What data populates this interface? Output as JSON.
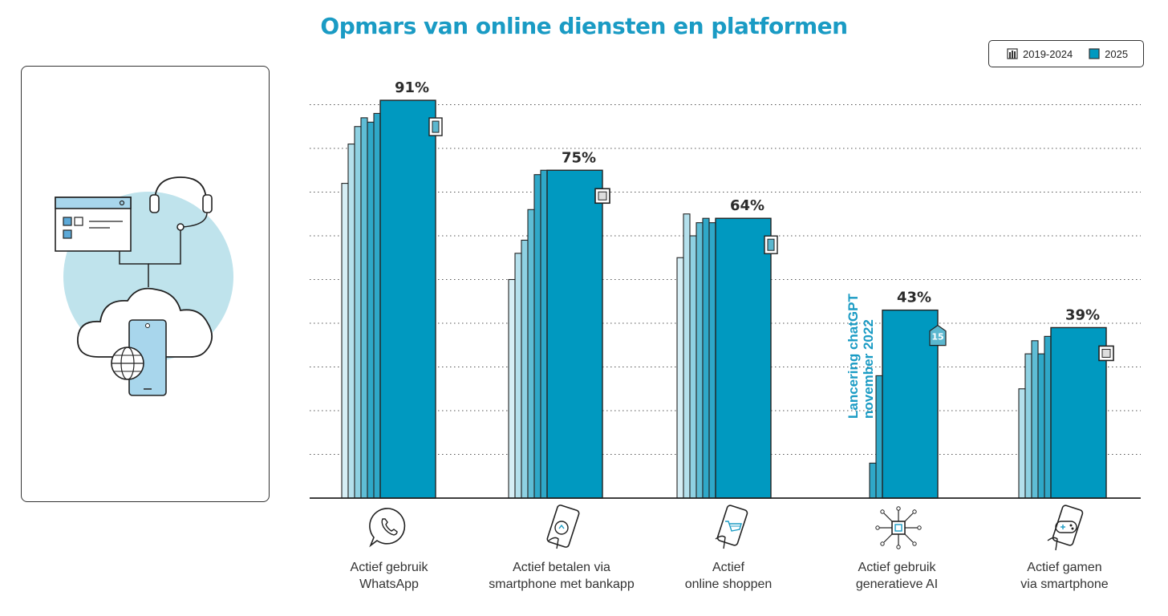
{
  "title": "Opmars van online diensten en platformen",
  "legend": [
    {
      "label": "2019-2024",
      "icon": "bar-stack-icon"
    },
    {
      "label": "2025",
      "icon": "square-swatch-icon",
      "color": "#0099c0"
    }
  ],
  "annotation": {
    "line1": "Lancering chatGPT",
    "line2": "november 2022"
  },
  "colors": {
    "current": "#0099c0",
    "previous": [
      "#d6eef5",
      "#b4e0ec",
      "#8ed1e2",
      "#5fbdd5",
      "#2fa8c8"
    ],
    "title": "#1a9bc4",
    "badge": "#5bb7cf"
  },
  "chart_data": {
    "type": "bar",
    "categories": [
      {
        "line1": "Actief gebruik",
        "line2": "WhatsApp",
        "icon": "whatsapp-icon"
      },
      {
        "line1": "Actief betalen via",
        "line2": "smartphone met bankapp",
        "icon": "phone-payment-icon"
      },
      {
        "line1": "Actief",
        "line2": "online shoppen",
        "icon": "phone-shopping-icon"
      },
      {
        "line1": "Actief gebruik",
        "line2": "generatieve AI",
        "icon": "ai-chip-icon"
      },
      {
        "line1": "Actief gamen",
        "line2": "via smartphone",
        "icon": "phone-gaming-icon"
      }
    ],
    "values_2025": [
      91,
      75,
      64,
      43,
      39
    ],
    "value_labels": [
      "91%",
      "75%",
      "64%",
      "43%",
      "39%"
    ],
    "history_2019_2024": [
      [
        72,
        81,
        85,
        87,
        86,
        88
      ],
      [
        50,
        56,
        59,
        66,
        74,
        75
      ],
      [
        55,
        65,
        60,
        63,
        64,
        63
      ],
      [
        null,
        null,
        null,
        null,
        8,
        28
      ],
      [
        null,
        25,
        33,
        36,
        33,
        37
      ]
    ],
    "change_badges": [
      {
        "label": "↑",
        "shape": "up-bar-icon"
      },
      {
        "label": "□",
        "shape": "stable-square-icon"
      },
      {
        "label": "↑",
        "shape": "up-bar-icon"
      },
      {
        "label": "15",
        "shape": "increase-15-badge"
      },
      {
        "label": "□",
        "shape": "stable-square-icon"
      }
    ],
    "ylim": [
      0,
      100
    ],
    "grid": true
  }
}
